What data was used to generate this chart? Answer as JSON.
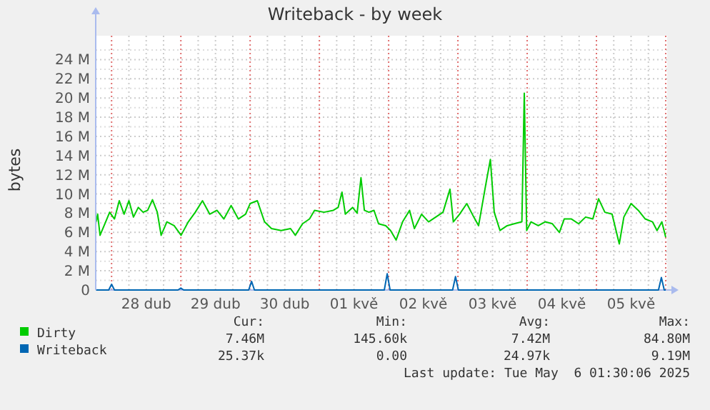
{
  "chart_data": {
    "type": "line",
    "title": "Writeback - by week",
    "ylabel": "bytes",
    "xlim": [
      "2025-04-27T18:30",
      "2025-05-06T00:30"
    ],
    "xticks": [
      {
        "value": "2025-04-28T00:00",
        "label": null
      },
      {
        "value": "2025-04-28T06:00",
        "label": null
      },
      {
        "value": "2025-04-28T12:00",
        "label": "28 dub"
      },
      {
        "value": "2025-04-28T18:00",
        "label": null
      },
      {
        "value": "2025-04-29T00:00",
        "label": null
      },
      {
        "value": "2025-04-29T06:00",
        "label": null
      },
      {
        "value": "2025-04-29T12:00",
        "label": "29 dub"
      },
      {
        "value": "2025-04-29T18:00",
        "label": null
      },
      {
        "value": "2025-04-30T00:00",
        "label": null
      },
      {
        "value": "2025-04-30T06:00",
        "label": null
      },
      {
        "value": "2025-04-30T12:00",
        "label": "30 dub"
      },
      {
        "value": "2025-04-30T18:00",
        "label": null
      },
      {
        "value": "2025-05-01T00:00",
        "label": null
      },
      {
        "value": "2025-05-01T06:00",
        "label": null
      },
      {
        "value": "2025-05-01T12:00",
        "label": "01 kvě"
      },
      {
        "value": "2025-05-01T18:00",
        "label": null
      },
      {
        "value": "2025-05-02T00:00",
        "label": null
      },
      {
        "value": "2025-05-02T06:00",
        "label": null
      },
      {
        "value": "2025-05-02T12:00",
        "label": "02 kvě"
      },
      {
        "value": "2025-05-02T18:00",
        "label": null
      },
      {
        "value": "2025-05-03T00:00",
        "label": null
      },
      {
        "value": "2025-05-03T06:00",
        "label": null
      },
      {
        "value": "2025-05-03T12:00",
        "label": "03 kvě"
      },
      {
        "value": "2025-05-03T18:00",
        "label": null
      },
      {
        "value": "2025-05-04T00:00",
        "label": null
      },
      {
        "value": "2025-05-04T06:00",
        "label": null
      },
      {
        "value": "2025-05-04T12:00",
        "label": "04 kvě"
      },
      {
        "value": "2025-05-04T18:00",
        "label": null
      },
      {
        "value": "2025-05-05T00:00",
        "label": null
      },
      {
        "value": "2025-05-05T06:00",
        "label": null
      },
      {
        "value": "2025-05-05T12:00",
        "label": "05 kvě"
      },
      {
        "value": "2025-05-05T18:00",
        "label": null
      },
      {
        "value": "2025-05-06T00:00",
        "label": null
      }
    ],
    "ylim": [
      0,
      25
    ],
    "yticks": [
      0,
      {
        "value": 1,
        "label": null
      },
      {
        "value": 2,
        "label": "2 M"
      },
      {
        "value": 3,
        "label": null
      },
      {
        "value": 4,
        "label": "4 M"
      },
      {
        "value": 5,
        "label": null
      },
      {
        "value": 6,
        "label": "6 M"
      },
      {
        "value": 7,
        "label": null
      },
      {
        "value": 8,
        "label": "8 M"
      },
      {
        "value": 9,
        "label": null
      },
      {
        "value": 10,
        "label": "10 M"
      },
      {
        "value": 11,
        "label": null
      },
      {
        "value": 12,
        "label": "12 M"
      },
      {
        "value": 13,
        "label": null
      },
      {
        "value": 14,
        "label": "14 M"
      },
      {
        "value": 15,
        "label": null
      },
      {
        "value": 16,
        "label": "16 M"
      },
      {
        "value": 17,
        "label": null
      },
      {
        "value": 18,
        "label": "18 M"
      },
      {
        "value": 19,
        "label": null
      },
      {
        "value": 20,
        "label": "20 M"
      },
      {
        "value": 21,
        "label": null
      },
      {
        "value": 22,
        "label": "22 M"
      },
      {
        "value": 23,
        "label": null
      },
      {
        "value": 24,
        "label": "24 M"
      },
      {
        "value": 25,
        "label": null
      }
    ],
    "grid": true,
    "legend": "bottom",
    "line_style": "solid",
    "marker": "none",
    "series": [
      {
        "name": "Dirty",
        "color": "#00cc00",
        "x": [
          "2025-04-27T18:40",
          "2025-04-27T19:10",
          "2025-04-27T20:00",
          "2025-04-27T21:40",
          "2025-04-27T23:20",
          "2025-04-28T01:00",
          "2025-04-28T02:40",
          "2025-04-28T04:20",
          "2025-04-28T06:00",
          "2025-04-28T07:35",
          "2025-04-28T09:15",
          "2025-04-28T10:55",
          "2025-04-28T12:30",
          "2025-04-28T14:10",
          "2025-04-28T15:50",
          "2025-04-28T17:10",
          "2025-04-28T19:10",
          "2025-04-28T21:40",
          "2025-04-29T00:05",
          "2025-04-29T02:35",
          "2025-04-29T05:00",
          "2025-04-29T07:30",
          "2025-04-29T10:00",
          "2025-04-29T12:30",
          "2025-04-29T14:55",
          "2025-04-29T17:25",
          "2025-04-29T19:55",
          "2025-04-29T22:25",
          "2025-04-30T00:00",
          "2025-04-30T02:30",
          "2025-04-30T05:00",
          "2025-04-30T07:25",
          "2025-04-30T10:45",
          "2025-04-30T14:00",
          "2025-04-30T15:40",
          "2025-04-30T18:10",
          "2025-04-30T20:35",
          "2025-04-30T22:20",
          "2025-05-01T01:35",
          "2025-05-01T04:50",
          "2025-05-01T06:30",
          "2025-05-01T07:50",
          "2025-05-01T09:00",
          "2025-05-01T11:30",
          "2025-05-01T13:05",
          "2025-05-01T14:25",
          "2025-05-01T15:35",
          "2025-05-01T17:10",
          "2025-05-01T18:55",
          "2025-05-01T20:30",
          "2025-05-01T23:00",
          "2025-05-02T00:40",
          "2025-05-02T02:35",
          "2025-05-02T04:50",
          "2025-05-02T07:15",
          "2025-05-02T08:55",
          "2025-05-02T11:25",
          "2025-05-02T13:50",
          "2025-05-02T16:20",
          "2025-05-02T18:50",
          "2025-05-02T21:15",
          "2025-05-02T22:25",
          "2025-05-03T00:35",
          "2025-05-03T03:05",
          "2025-05-03T05:30",
          "2025-05-03T07:10",
          "2025-05-03T09:40",
          "2025-05-03T11:15",
          "2025-05-03T12:35",
          "2025-05-03T14:35",
          "2025-05-03T17:05",
          "2025-05-03T19:30",
          "2025-05-03T22:10",
          "2025-05-03T23:00",
          "2025-05-03T23:50",
          "2025-05-04T01:20",
          "2025-05-04T03:50",
          "2025-05-04T06:15",
          "2025-05-04T08:45",
          "2025-05-04T11:10",
          "2025-05-04T12:50",
          "2025-05-04T15:20",
          "2025-05-04T17:50",
          "2025-05-04T20:15",
          "2025-05-04T22:45",
          "2025-05-05T00:45",
          "2025-05-05T02:55",
          "2025-05-05T05:25",
          "2025-05-05T07:55",
          "2025-05-05T09:30",
          "2025-05-05T12:00",
          "2025-05-05T14:30",
          "2025-05-05T16:55",
          "2025-05-05T19:25",
          "2025-05-05T21:00",
          "2025-05-05T22:40",
          "2025-05-06T00:00"
        ],
        "values": [
          7.1,
          7.9,
          5.7,
          6.9,
          8.1,
          7.4,
          9.3,
          7.9,
          9.3,
          7.6,
          8.6,
          8.1,
          8.3,
          9.4,
          8.1,
          5.7,
          7.1,
          6.7,
          5.7,
          7.1,
          8.1,
          9.3,
          7.9,
          8.3,
          7.4,
          8.8,
          7.4,
          7.9,
          9.0,
          9.3,
          7.1,
          6.4,
          6.2,
          6.4,
          5.7,
          6.9,
          7.4,
          8.3,
          8.1,
          8.3,
          8.6,
          10.2,
          7.9,
          8.6,
          8.0,
          11.7,
          8.3,
          8.1,
          8.3,
          6.9,
          6.7,
          6.2,
          5.2,
          7.1,
          8.3,
          6.4,
          7.9,
          7.1,
          7.6,
          8.1,
          10.5,
          7.1,
          7.9,
          9.0,
          7.6,
          6.7,
          11.0,
          13.6,
          8.1,
          6.2,
          6.7,
          6.9,
          7.1,
          20.5,
          6.2,
          7.1,
          6.7,
          7.1,
          6.9,
          6.0,
          7.4,
          7.4,
          6.9,
          7.6,
          7.4,
          9.5,
          8.1,
          7.9,
          4.8,
          7.6,
          9.0,
          8.3,
          7.4,
          7.1,
          6.2,
          7.1,
          5.5
        ]
      },
      {
        "name": "Writeback",
        "color": "#0066b3",
        "x": [
          "2025-04-27T18:40",
          "2025-04-27T23:00",
          "2025-04-28T00:00",
          "2025-04-28T01:00",
          "2025-04-28T23:00",
          "2025-04-29T00:00",
          "2025-04-29T01:00",
          "2025-04-29T23:30",
          "2025-04-30T00:30",
          "2025-04-30T01:30",
          "2025-05-01T22:30",
          "2025-05-01T23:30",
          "2025-05-02T00:30",
          "2025-05-02T22:10",
          "2025-05-02T23:10",
          "2025-05-03T00:10",
          "2025-05-05T21:30",
          "2025-05-05T22:30",
          "2025-05-05T23:30",
          "2025-05-06T00:00"
        ],
        "values": [
          0,
          0,
          0.6,
          0,
          0,
          0.2,
          0,
          0,
          0.9,
          0,
          0,
          1.7,
          0,
          0,
          1.4,
          0,
          0,
          1.3,
          0,
          0
        ]
      }
    ],
    "annotations": [
      "Cur:",
      "Min:",
      "Avg:",
      "Max:",
      "7.46M",
      "145.60k",
      "7.42M",
      "84.80M",
      "25.37k",
      "0.00",
      "24.97k",
      "9.19M",
      "Last update: Tue May  6 01:30:06 2025"
    ]
  }
}
